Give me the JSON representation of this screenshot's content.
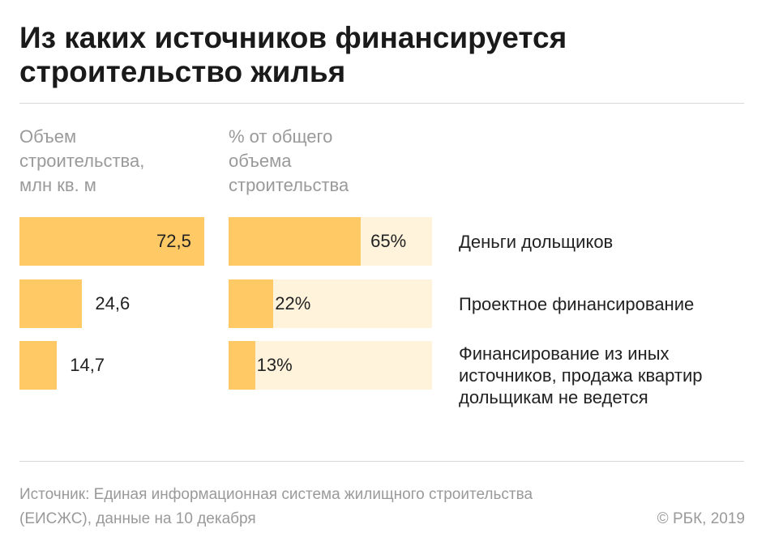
{
  "title": [
    "Из каких источников финансируется",
    "строительство жилья"
  ],
  "col1_header": [
    "Объем",
    "строительства,",
    "млн кв. м"
  ],
  "col2_header": [
    "% от общего",
    "объема",
    "строительства"
  ],
  "colors": {
    "bar": "#ffc966",
    "track": "#fff3dc",
    "text": "#222222",
    "muted": "#9a9a9a"
  },
  "chart_data": {
    "type": "bar",
    "categories": [
      [
        "Деньги дольщиков"
      ],
      [
        "Проектное финансирование"
      ],
      [
        "Финансирование из иных",
        "источников, продажа квартир",
        "дольщикам не ведется"
      ]
    ],
    "series": [
      {
        "values": [
          72.5,
          24.6,
          14.7
        ],
        "labels": [
          "72,5",
          "24,6",
          "14,7"
        ]
      },
      {
        "values": [
          65,
          22,
          13
        ],
        "labels": [
          "65%",
          "22%",
          "13%"
        ],
        "max": 100
      }
    ]
  },
  "footer": {
    "source": [
      "Источник: Единая информационная система жилищного строительства",
      "(ЕИСЖС), данные на 10 декабря"
    ],
    "copyright": "© РБК, 2019"
  }
}
